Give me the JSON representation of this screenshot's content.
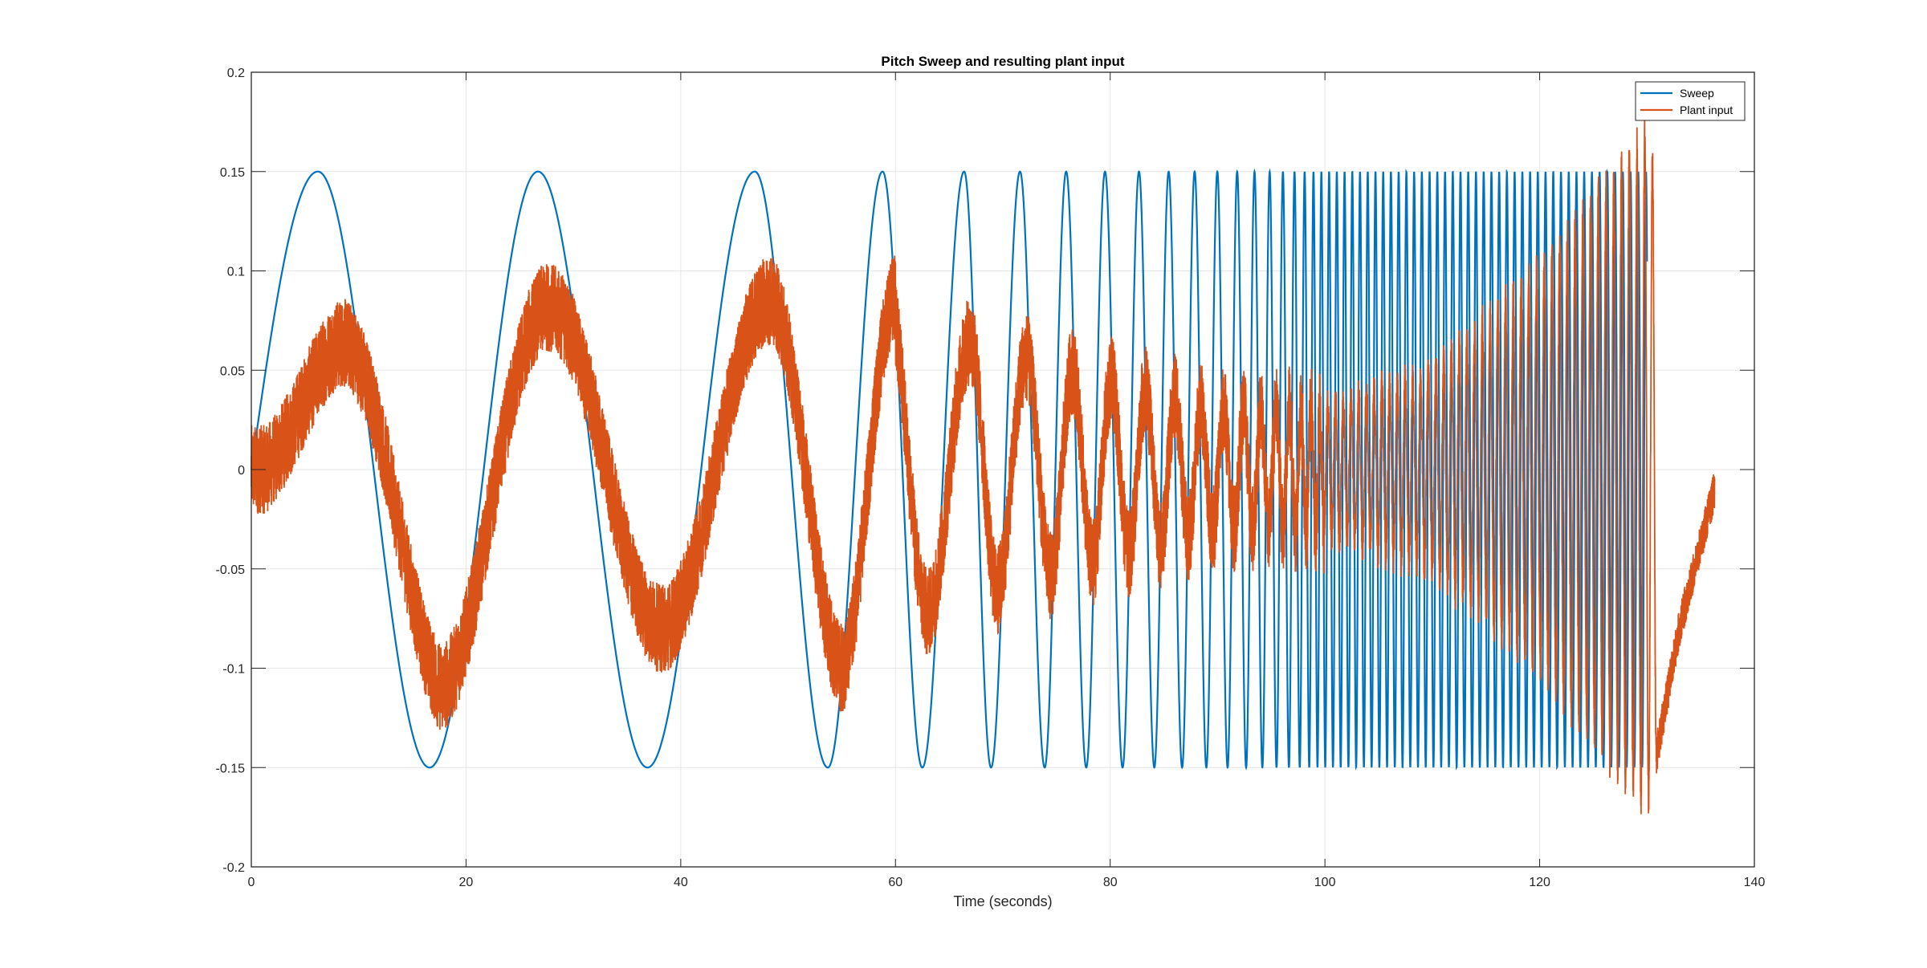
{
  "chart_data": {
    "type": "line",
    "title": "Pitch Sweep and resulting plant input",
    "xlabel": "Time (seconds)",
    "ylabel": "",
    "xlim": [
      0,
      140
    ],
    "ylim": [
      -0.2,
      0.2
    ],
    "xticks": [
      0,
      20,
      40,
      60,
      80,
      100,
      120,
      140
    ],
    "yticks": [
      -0.2,
      -0.15,
      -0.1,
      -0.05,
      0,
      0.05,
      0.1,
      0.15,
      0.2
    ],
    "xtick_labels": [
      "0",
      "20",
      "40",
      "60",
      "80",
      "100",
      "120",
      "140"
    ],
    "ytick_labels": [
      "-0.2",
      "-0.15",
      "-0.1",
      "-0.05",
      "0",
      "0.05",
      "0.1",
      "0.15",
      "0.2"
    ],
    "grid": true,
    "legend_position": "top-right",
    "series": [
      {
        "name": "Sweep",
        "color": "#0072BD",
        "description": "chirp",
        "x_range": [
          0,
          130
        ],
        "amplitude": 0.15,
        "peaks": [
          {
            "x": 6.2,
            "y": 0.15
          },
          {
            "x": 16.6,
            "y": -0.15
          },
          {
            "x": 26.7,
            "y": 0.15
          },
          {
            "x": 36.9,
            "y": -0.15
          },
          {
            "x": 46.9,
            "y": 0.15
          },
          {
            "x": 53.7,
            "y": -0.15
          },
          {
            "x": 58.8,
            "y": 0.15
          },
          {
            "x": 62.5,
            "y": -0.15
          },
          {
            "x": 66.4,
            "y": 0.15
          },
          {
            "x": 68.9,
            "y": -0.15
          },
          {
            "x": 71.6,
            "y": 0.15
          },
          {
            "x": 73.9,
            "y": -0.15
          },
          {
            "x": 75.9,
            "y": 0.15
          }
        ]
      },
      {
        "name": "Plant input",
        "color": "#D95319",
        "x_range": [
          0,
          136.3
        ],
        "envelope": [
          {
            "x": 0,
            "amp": 0.01
          },
          {
            "x": 9,
            "amp": 0.07
          },
          {
            "x": 17.5,
            "amp": 0.11
          },
          {
            "x": 28.5,
            "amp": 0.08
          },
          {
            "x": 38,
            "amp": 0.08
          },
          {
            "x": 48.5,
            "amp": 0.085
          },
          {
            "x": 55,
            "amp": 0.1
          },
          {
            "x": 59,
            "amp": 0.09
          },
          {
            "x": 63.5,
            "amp": 0.07
          },
          {
            "x": 70,
            "amp": 0.06
          },
          {
            "x": 80,
            "amp": 0.045
          },
          {
            "x": 90,
            "amp": 0.03
          },
          {
            "x": 100,
            "amp": 0.03
          },
          {
            "x": 110,
            "amp": 0.05
          },
          {
            "x": 120,
            "amp": 0.1
          },
          {
            "x": 127,
            "amp": 0.15
          },
          {
            "x": 130,
            "amp": 0.17
          },
          {
            "x": 133,
            "amp": 0.08
          },
          {
            "x": 136.3,
            "amp": 0.01
          }
        ],
        "min_value": -0.195,
        "max_value": 0.18
      }
    ]
  }
}
